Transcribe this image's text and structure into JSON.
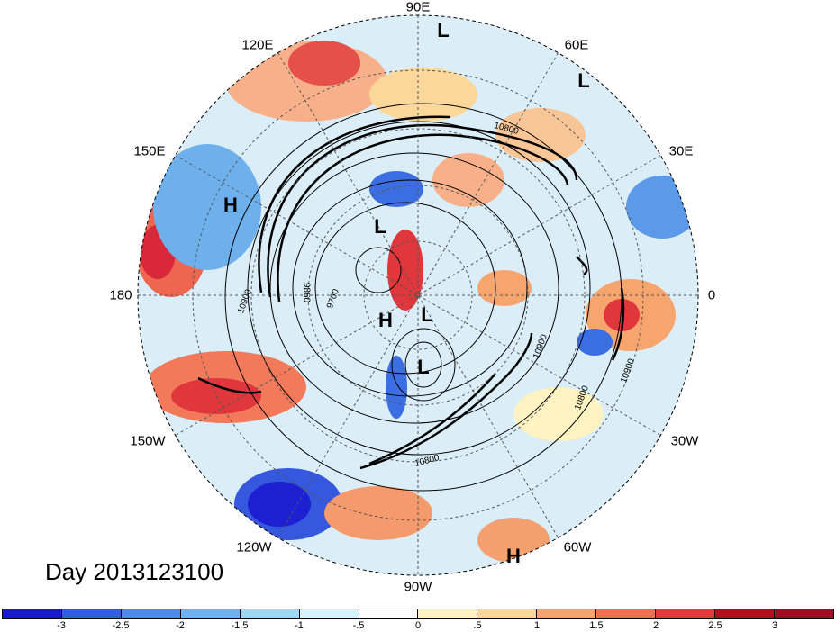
{
  "longitude_labels": [
    {
      "text": "90E",
      "name": "lon-90e"
    },
    {
      "text": "60E",
      "name": "lon-60e"
    },
    {
      "text": "30E",
      "name": "lon-30e"
    },
    {
      "text": "0",
      "name": "lon-0"
    },
    {
      "text": "30W",
      "name": "lon-30w"
    },
    {
      "text": "60W",
      "name": "lon-60w"
    },
    {
      "text": "90W",
      "name": "lon-90w"
    },
    {
      "text": "120W",
      "name": "lon-120w"
    },
    {
      "text": "150W",
      "name": "lon-150w"
    },
    {
      "text": "180",
      "name": "lon-180"
    },
    {
      "text": "150E",
      "name": "lon-150e"
    },
    {
      "text": "120E",
      "name": "lon-120e"
    }
  ],
  "pressure_markers": [
    "L",
    "L",
    "H",
    "L",
    "H",
    "L",
    "L",
    "H"
  ],
  "contour_labels": [
    "10800",
    "10900",
    "9860",
    "9700",
    "10900",
    "10800",
    "10800",
    "10900"
  ],
  "day_label": "Day 2013123100",
  "colorbar": {
    "tick_labels": [
      "-3",
      "-2.5",
      "-2",
      "-1.5",
      "-1",
      "-.5",
      "0",
      ".5",
      "1",
      "1.5",
      "2",
      "2.5",
      "3"
    ],
    "colors": [
      "#1a1ad6",
      "#2f5fe0",
      "#4a8ce8",
      "#6fb2f0",
      "#9fd8f6",
      "#d6f2fb",
      "#ffffff",
      "#fdf3c2",
      "#fbd79a",
      "#f7a56f",
      "#f0714f",
      "#e23b3b",
      "#b00f1e",
      "#a00d22"
    ]
  }
}
